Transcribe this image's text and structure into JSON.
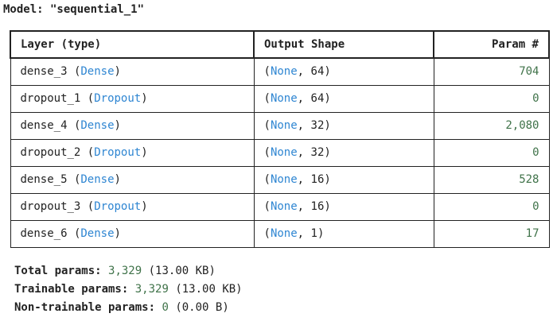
{
  "model": {
    "title": "Model: \"sequential_1\""
  },
  "table": {
    "headers": {
      "layer": "Layer (type)",
      "shape": "Output Shape",
      "param": "Param #"
    },
    "rows": [
      {
        "name": "dense_3",
        "type": "Dense",
        "shape_dim": "64",
        "params": "704"
      },
      {
        "name": "dropout_1",
        "type": "Dropout",
        "shape_dim": "64",
        "params": "0"
      },
      {
        "name": "dense_4",
        "type": "Dense",
        "shape_dim": "32",
        "params": "2,080"
      },
      {
        "name": "dropout_2",
        "type": "Dropout",
        "shape_dim": "32",
        "params": "0"
      },
      {
        "name": "dense_5",
        "type": "Dense",
        "shape_dim": "16",
        "params": "528"
      },
      {
        "name": "dropout_3",
        "type": "Dropout",
        "shape_dim": "16",
        "params": "0"
      },
      {
        "name": "dense_6",
        "type": "Dense",
        "shape_dim": "1",
        "params": "17"
      }
    ],
    "none_text": "None"
  },
  "totals": {
    "total": {
      "label": "Total params:",
      "value": "3,329",
      "size": "(13.00 KB)"
    },
    "trainable": {
      "label": "Trainable params:",
      "value": "3,329",
      "size": "(13.00 KB)"
    },
    "non_trainable": {
      "label": "Non-trainable params:",
      "value": "0",
      "size": "(0.00 B)"
    }
  },
  "colors": {
    "type_blue": "#2f86d2",
    "number_green": "#40734a",
    "text": "#222222"
  }
}
